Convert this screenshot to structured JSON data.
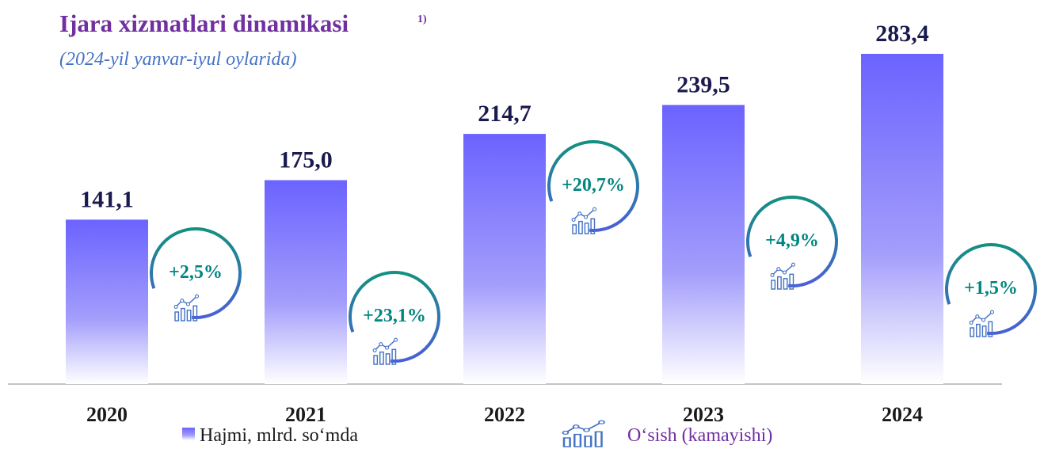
{
  "chart_data": {
    "type": "bar",
    "title": "Ijara xizmatlari dinamikasi",
    "title_note": "1)",
    "subtitle": "(2024-yil yanvar-iyul oylarida)",
    "categories": [
      "2020",
      "2021",
      "2022",
      "2023",
      "2024"
    ],
    "series": [
      {
        "name": "Hajmi, mlrd. so‘mda",
        "color": "#6b63ff",
        "values": [
          141.1,
          175.0,
          214.7,
          239.5,
          283.4
        ],
        "value_labels": [
          "141,1",
          "175,0",
          "214,7",
          "239,5",
          "283,4"
        ]
      },
      {
        "name": "O‘sish (kamayishi)",
        "color": "#00857f",
        "values": [
          2.5,
          23.1,
          20.7,
          4.9,
          1.5
        ],
        "value_labels": [
          "+2,5%",
          "+23,1%",
          "+20,7%",
          "+4,9%",
          "+1,5%"
        ]
      }
    ]
  }
}
